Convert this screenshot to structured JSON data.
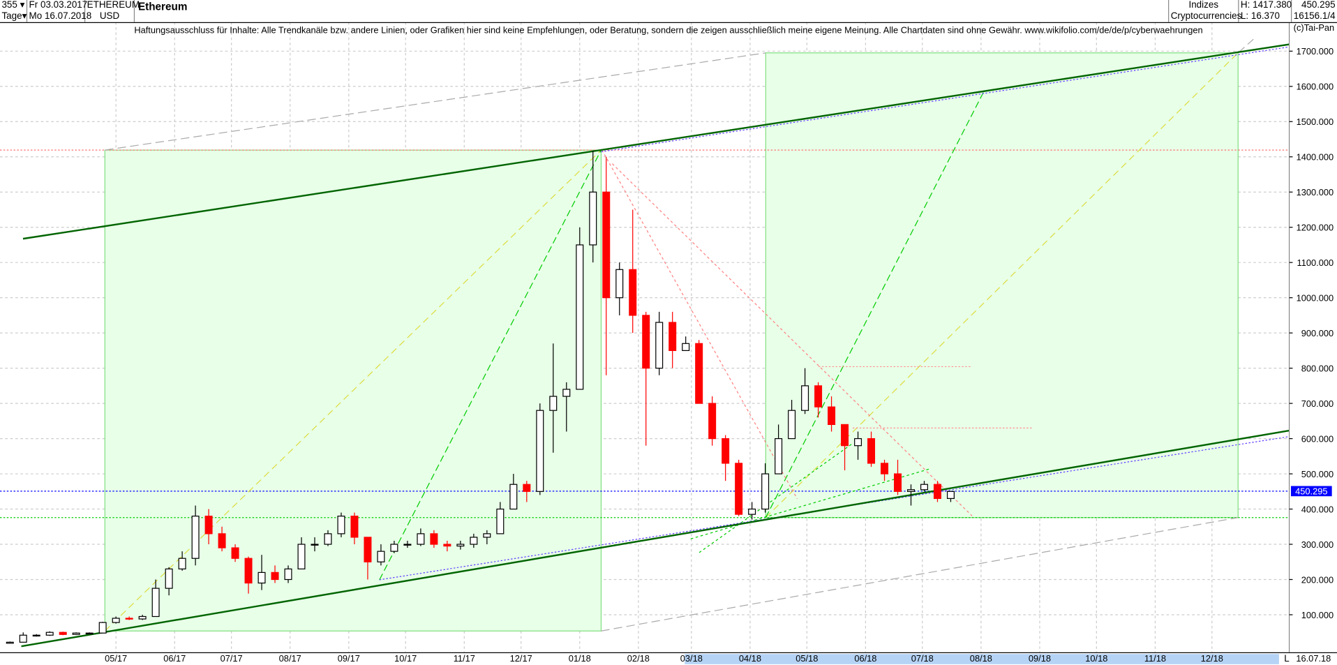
{
  "header": {
    "count": "355",
    "period": "Tage",
    "date_from": "Fr 03.03.2017",
    "date_to": "Mo 16.07.2018",
    "symbol": "ETHEREUM",
    "currency": "USD",
    "title": "Ethereum",
    "group1": "Indizes",
    "group2": "Cryptocurrencies",
    "high": "H: 1417.380",
    "low": "L: 16.370",
    "last": "450.295",
    "extra": "16156.1/4"
  },
  "disclaimer": "Haftungsausschluss für Inhalte: Alle Trendkanäle bzw. andere Linien, oder Grafiken hier sind keine Empfehlungen, oder Beratung, sondern die zeigen ausschließlich meine eigene Meinung. Alle Chartdaten sind ohne Gewähr.  www.wikifolio.com/de/de/p/cyberwaehrungen",
  "copyright": "(c)Tai-Pan",
  "bottom": {
    "l_label": "L",
    "end_date": "16.07.18"
  },
  "colors": {
    "up": "#000000",
    "down": "#ff0000",
    "trend": "#006400",
    "box": "#ccffcc",
    "last_price": "#0000ff"
  },
  "chart_data": {
    "type": "candlestick",
    "title": "Ethereum",
    "ylim": [
      0,
      1750
    ],
    "y_ticks": [
      "100.000",
      "200.000",
      "300.000",
      "400.000",
      "500.000",
      "600.000",
      "700.000",
      "800.000",
      "900.000",
      "1000.000",
      "1100.000",
      "1200.000",
      "1300.000",
      "1400.000",
      "1500.000",
      "1600.000",
      "1700.000"
    ],
    "x_ticks": [
      {
        "date": "2017-05-01",
        "label": "05/17"
      },
      {
        "date": "2017-06-01",
        "label": "06/17"
      },
      {
        "date": "2017-07-01",
        "label": "07/17"
      },
      {
        "date": "2017-08-01",
        "label": "08/17"
      },
      {
        "date": "2017-09-01",
        "label": "09/17"
      },
      {
        "date": "2017-10-01",
        "label": "10/17"
      },
      {
        "date": "2017-11-01",
        "label": "11/17"
      },
      {
        "date": "2017-12-01",
        "label": "12/17"
      },
      {
        "date": "2018-01-01",
        "label": "01/18"
      },
      {
        "date": "2018-02-01",
        "label": "02/18"
      },
      {
        "date": "2018-03-01",
        "label": "03/18"
      },
      {
        "date": "2018-04-01",
        "label": "04/18"
      },
      {
        "date": "2018-05-01",
        "label": "05/18"
      },
      {
        "date": "2018-06-01",
        "label": "06/18"
      },
      {
        "date": "2018-07-01",
        "label": "07/18"
      },
      {
        "date": "2018-08-01",
        "label": "08/18"
      },
      {
        "date": "2018-09-01",
        "label": "09/18"
      },
      {
        "date": "2018-10-01",
        "label": "10/18"
      },
      {
        "date": "2018-11-01",
        "label": "11/18"
      },
      {
        "date": "2018-12-01",
        "label": "12/18"
      }
    ],
    "last_price": 450.295,
    "last_price_label": "450.295",
    "high_line": 1417.38,
    "support_line": 375,
    "ohlc": [
      [
        "2017-03-06",
        19,
        24,
        18,
        22
      ],
      [
        "2017-03-13",
        22,
        50,
        22,
        42
      ],
      [
        "2017-03-20",
        42,
        45,
        38,
        42
      ],
      [
        "2017-03-27",
        42,
        53,
        40,
        50
      ],
      [
        "2017-04-03",
        50,
        52,
        42,
        44
      ],
      [
        "2017-04-10",
        44,
        50,
        43,
        48
      ],
      [
        "2017-04-17",
        48,
        50,
        46,
        48
      ],
      [
        "2017-04-24",
        48,
        80,
        47,
        78
      ],
      [
        "2017-05-01",
        78,
        95,
        75,
        90
      ],
      [
        "2017-05-08",
        90,
        95,
        85,
        88
      ],
      [
        "2017-05-15",
        88,
        100,
        85,
        95
      ],
      [
        "2017-05-22",
        95,
        200,
        95,
        175
      ],
      [
        "2017-05-29",
        175,
        235,
        155,
        230
      ],
      [
        "2017-06-05",
        230,
        280,
        225,
        260
      ],
      [
        "2017-06-12",
        260,
        410,
        240,
        380
      ],
      [
        "2017-06-19",
        380,
        400,
        300,
        330
      ],
      [
        "2017-06-26",
        330,
        350,
        280,
        290
      ],
      [
        "2017-07-03",
        290,
        300,
        250,
        260
      ],
      [
        "2017-07-10",
        260,
        265,
        160,
        190
      ],
      [
        "2017-07-17",
        190,
        270,
        170,
        220
      ],
      [
        "2017-07-24",
        220,
        240,
        190,
        200
      ],
      [
        "2017-07-31",
        200,
        240,
        190,
        230
      ],
      [
        "2017-08-07",
        230,
        320,
        230,
        300
      ],
      [
        "2017-08-14",
        300,
        320,
        280,
        300
      ],
      [
        "2017-08-21",
        300,
        340,
        295,
        330
      ],
      [
        "2017-08-28",
        330,
        390,
        320,
        380
      ],
      [
        "2017-09-04",
        380,
        390,
        300,
        320
      ],
      [
        "2017-09-11",
        320,
        320,
        200,
        250
      ],
      [
        "2017-09-18",
        250,
        300,
        240,
        280
      ],
      [
        "2017-09-25",
        280,
        310,
        275,
        300
      ],
      [
        "2017-10-02",
        300,
        310,
        290,
        300
      ],
      [
        "2017-10-09",
        300,
        345,
        295,
        330
      ],
      [
        "2017-10-16",
        330,
        340,
        290,
        300
      ],
      [
        "2017-10-23",
        300,
        310,
        280,
        295
      ],
      [
        "2017-10-30",
        295,
        310,
        285,
        300
      ],
      [
        "2017-11-06",
        300,
        330,
        290,
        320
      ],
      [
        "2017-11-13",
        320,
        340,
        300,
        330
      ],
      [
        "2017-11-20",
        330,
        420,
        330,
        400
      ],
      [
        "2017-11-27",
        400,
        500,
        400,
        470
      ],
      [
        "2017-12-04",
        470,
        480,
        420,
        450
      ],
      [
        "2017-12-11",
        450,
        700,
        440,
        680
      ],
      [
        "2017-12-18",
        680,
        870,
        560,
        720
      ],
      [
        "2017-12-25",
        720,
        760,
        620,
        740
      ],
      [
        "2018-01-01",
        740,
        1200,
        740,
        1150
      ],
      [
        "2018-01-08",
        1150,
        1417,
        1100,
        1300
      ],
      [
        "2018-01-15",
        1300,
        1400,
        780,
        1000
      ],
      [
        "2018-01-22",
        1000,
        1100,
        950,
        1080
      ],
      [
        "2018-01-29",
        1080,
        1250,
        900,
        950
      ],
      [
        "2018-02-05",
        950,
        960,
        580,
        800
      ],
      [
        "2018-02-12",
        800,
        960,
        780,
        930
      ],
      [
        "2018-02-19",
        930,
        960,
        800,
        850
      ],
      [
        "2018-02-26",
        850,
        890,
        850,
        870
      ],
      [
        "2018-03-05",
        870,
        880,
        700,
        700
      ],
      [
        "2018-03-12",
        700,
        720,
        580,
        600
      ],
      [
        "2018-03-19",
        600,
        610,
        480,
        530
      ],
      [
        "2018-03-26",
        530,
        540,
        380,
        385
      ],
      [
        "2018-04-02",
        385,
        420,
        370,
        400
      ],
      [
        "2018-04-09",
        400,
        530,
        390,
        500
      ],
      [
        "2018-04-16",
        500,
        640,
        500,
        600
      ],
      [
        "2018-04-23",
        600,
        710,
        600,
        680
      ],
      [
        "2018-04-30",
        680,
        800,
        670,
        750
      ],
      [
        "2018-05-07",
        750,
        760,
        660,
        690
      ],
      [
        "2018-05-14",
        690,
        720,
        620,
        640
      ],
      [
        "2018-05-21",
        640,
        640,
        510,
        580
      ],
      [
        "2018-05-28",
        580,
        620,
        540,
        600
      ],
      [
        "2018-06-04",
        600,
        620,
        520,
        530
      ],
      [
        "2018-06-11",
        530,
        540,
        480,
        500
      ],
      [
        "2018-06-18",
        500,
        540,
        440,
        450
      ],
      [
        "2018-06-25",
        450,
        470,
        410,
        455
      ],
      [
        "2018-07-02",
        455,
        480,
        450,
        470
      ],
      [
        "2018-07-09",
        470,
        480,
        420,
        430
      ],
      [
        "2018-07-16",
        430,
        450,
        420,
        450
      ]
    ]
  }
}
